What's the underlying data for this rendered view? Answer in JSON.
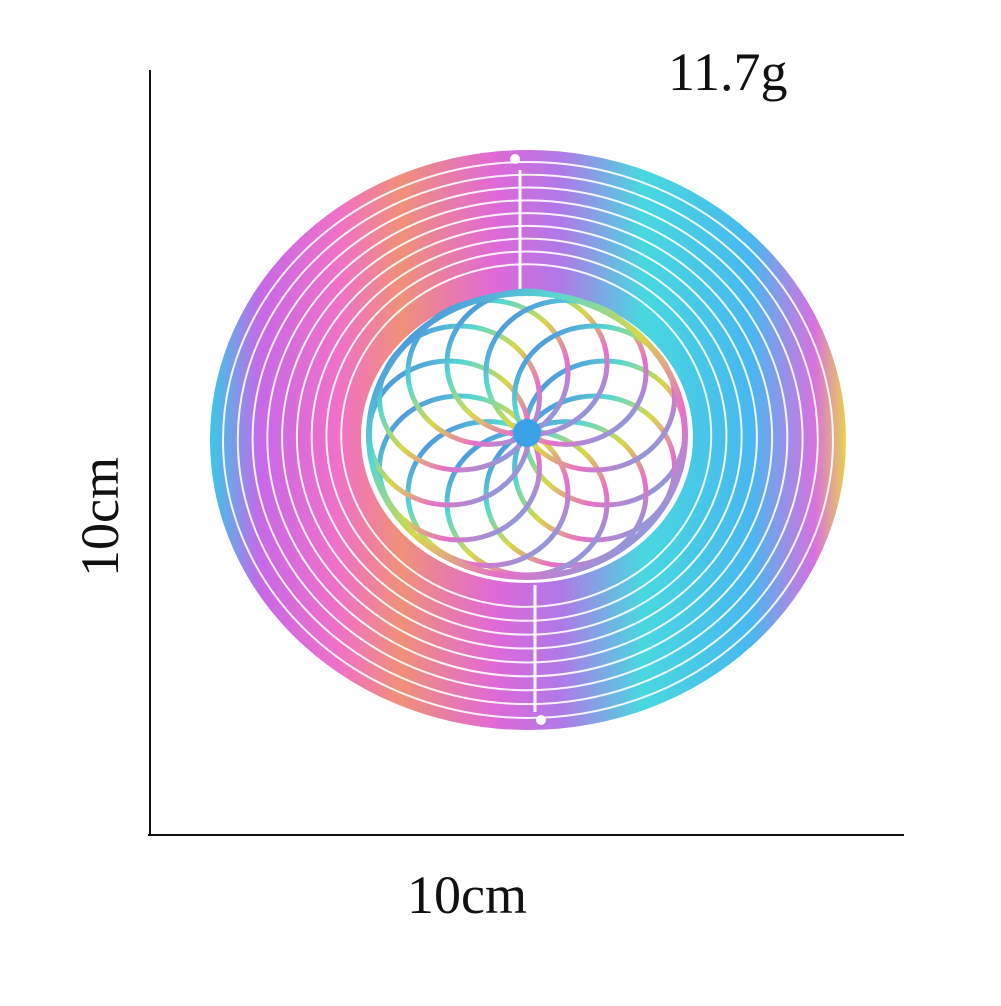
{
  "weight": "11.7g",
  "height_label": "10cm",
  "width_label": "10cm"
}
